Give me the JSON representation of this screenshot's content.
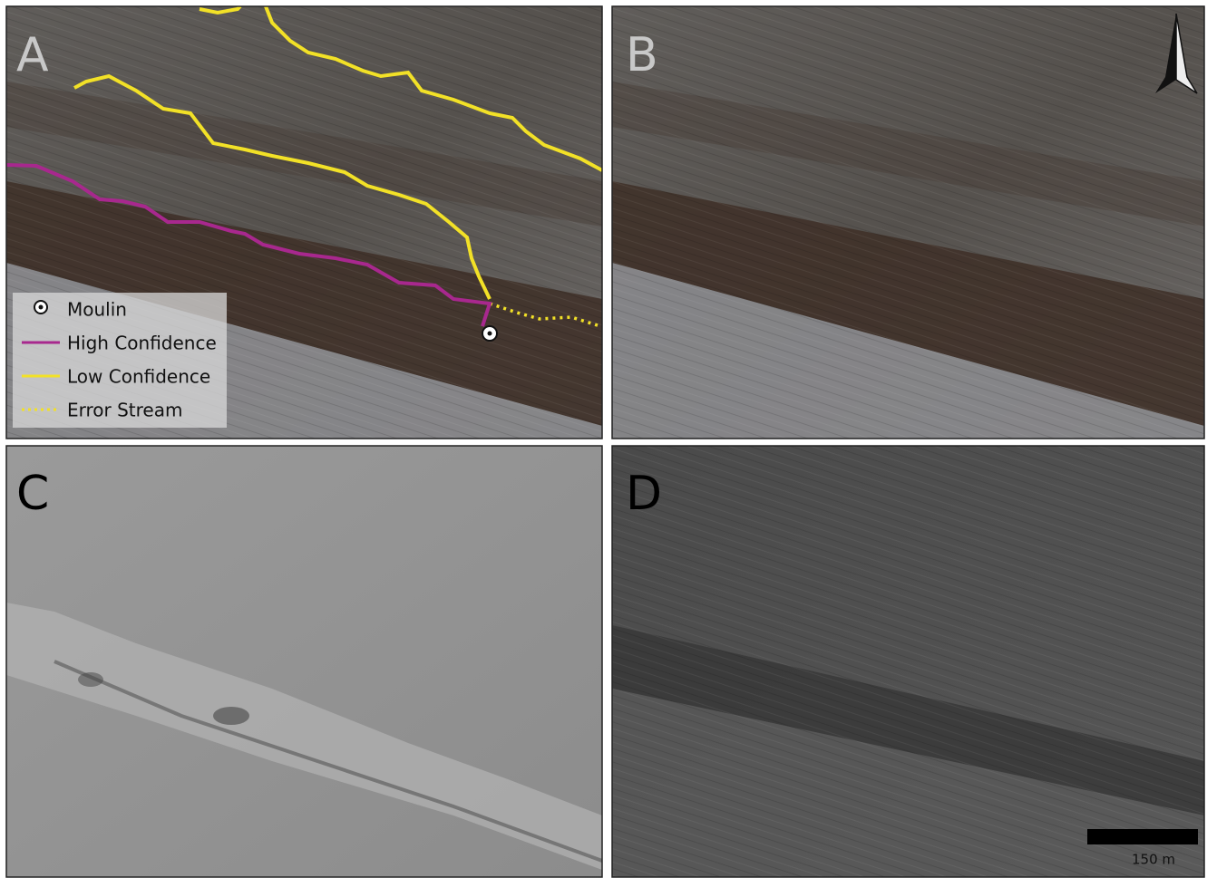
{
  "panels": [
    {
      "label": "A"
    },
    {
      "label": "B"
    },
    {
      "label": "C"
    },
    {
      "label": "D"
    }
  ],
  "legend": {
    "items": [
      {
        "label": "Moulin"
      },
      {
        "label": "High Confidence"
      },
      {
        "label": "Low Confidence"
      },
      {
        "label": "Error Stream"
      }
    ]
  },
  "scale_bar": {
    "label": "150 m"
  }
}
